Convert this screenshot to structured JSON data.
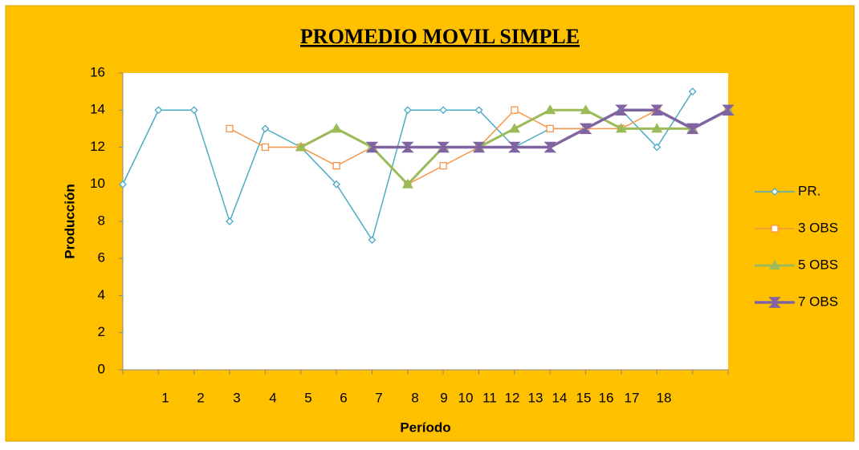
{
  "chart_data": {
    "type": "line",
    "title": "PROMEDIO MOVIL SIMPLE",
    "x_label": "Período",
    "y_label": "Producción",
    "categories": [
      "1",
      "2",
      "3",
      "4",
      "5",
      "6",
      "7",
      "8",
      "9",
      "10",
      "11",
      "12",
      "13",
      "14",
      "15",
      "16",
      "17",
      "18"
    ],
    "ylim": [
      0,
      16
    ],
    "yticks": [
      0,
      2,
      4,
      6,
      8,
      10,
      12,
      14,
      16
    ],
    "legend": "right",
    "series": [
      {
        "name": "PR.",
        "color": "#4bacc6",
        "marker": "diamond",
        "values": [
          10,
          14,
          14,
          8,
          13,
          12,
          10,
          7,
          14,
          14,
          14,
          12,
          13,
          13,
          14,
          12,
          15,
          null
        ]
      },
      {
        "name": "3 OBS",
        "color": "#f79646",
        "marker": "square",
        "values": [
          null,
          null,
          null,
          13,
          12,
          12,
          11,
          12,
          10,
          11,
          12,
          14,
          13,
          13,
          13,
          14,
          13,
          14
        ]
      },
      {
        "name": "5 OBS",
        "color": "#9bbb59",
        "marker": "triangle",
        "values": [
          null,
          null,
          null,
          null,
          null,
          12,
          13,
          12,
          10,
          12,
          12,
          13,
          14,
          14,
          13,
          13,
          13,
          14
        ]
      },
      {
        "name": "7 OBS",
        "color": "#8064a2",
        "marker": "star",
        "values": [
          null,
          null,
          null,
          null,
          null,
          null,
          null,
          12,
          12,
          12,
          12,
          12,
          12,
          13,
          14,
          14,
          13,
          14
        ]
      }
    ]
  }
}
